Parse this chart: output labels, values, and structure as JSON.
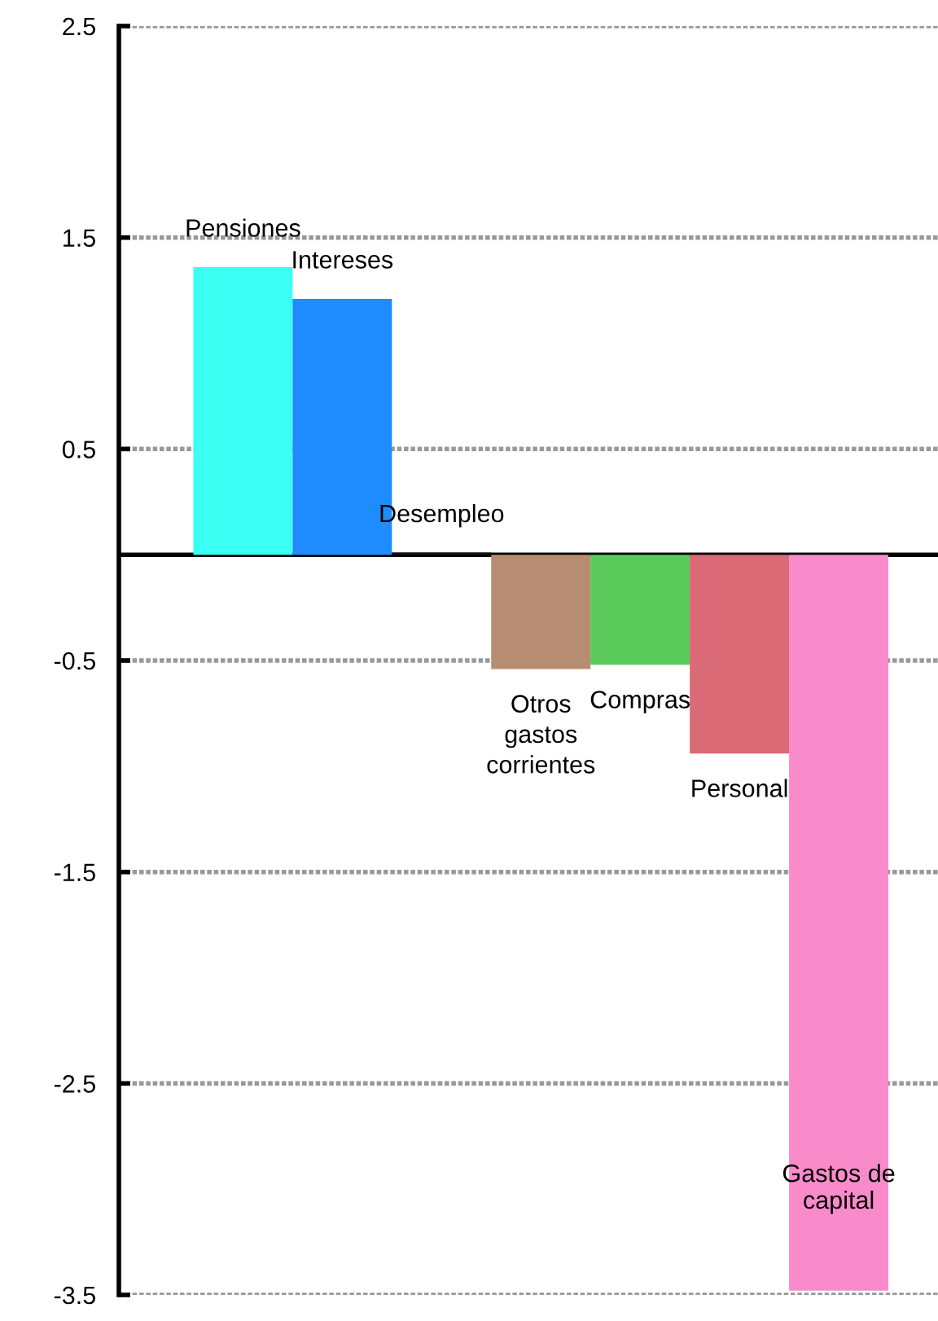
{
  "chart_data": {
    "type": "bar",
    "categories": [
      "Pensiones",
      "Intereses",
      "Desempleo",
      "Otros\ngastos\ncorrientes",
      "Compras",
      "Personal",
      "Gastos de\ncapital"
    ],
    "values": [
      1.36,
      1.21,
      0.01,
      -0.54,
      -0.52,
      -0.94,
      -3.48
    ],
    "colors": [
      "#3bfff3",
      "#1e8cff",
      "#111111",
      "#b68d72",
      "#5bcb5c",
      "#d96a76",
      "#f98bcb"
    ],
    "ylim": [
      -3.5,
      2.5
    ],
    "yticks": [
      {
        "value": 2.5,
        "label": "2.5"
      },
      {
        "value": 1.5,
        "label": "1.5"
      },
      {
        "value": 0.5,
        "label": "0.5"
      },
      {
        "value": -0.5,
        "label": "-0.5"
      },
      {
        "value": -1.5,
        "label": "-1.5"
      },
      {
        "value": -2.5,
        "label": "-2.5"
      },
      {
        "value": -3.5,
        "label": "-3.5"
      }
    ],
    "grid": "y"
  }
}
